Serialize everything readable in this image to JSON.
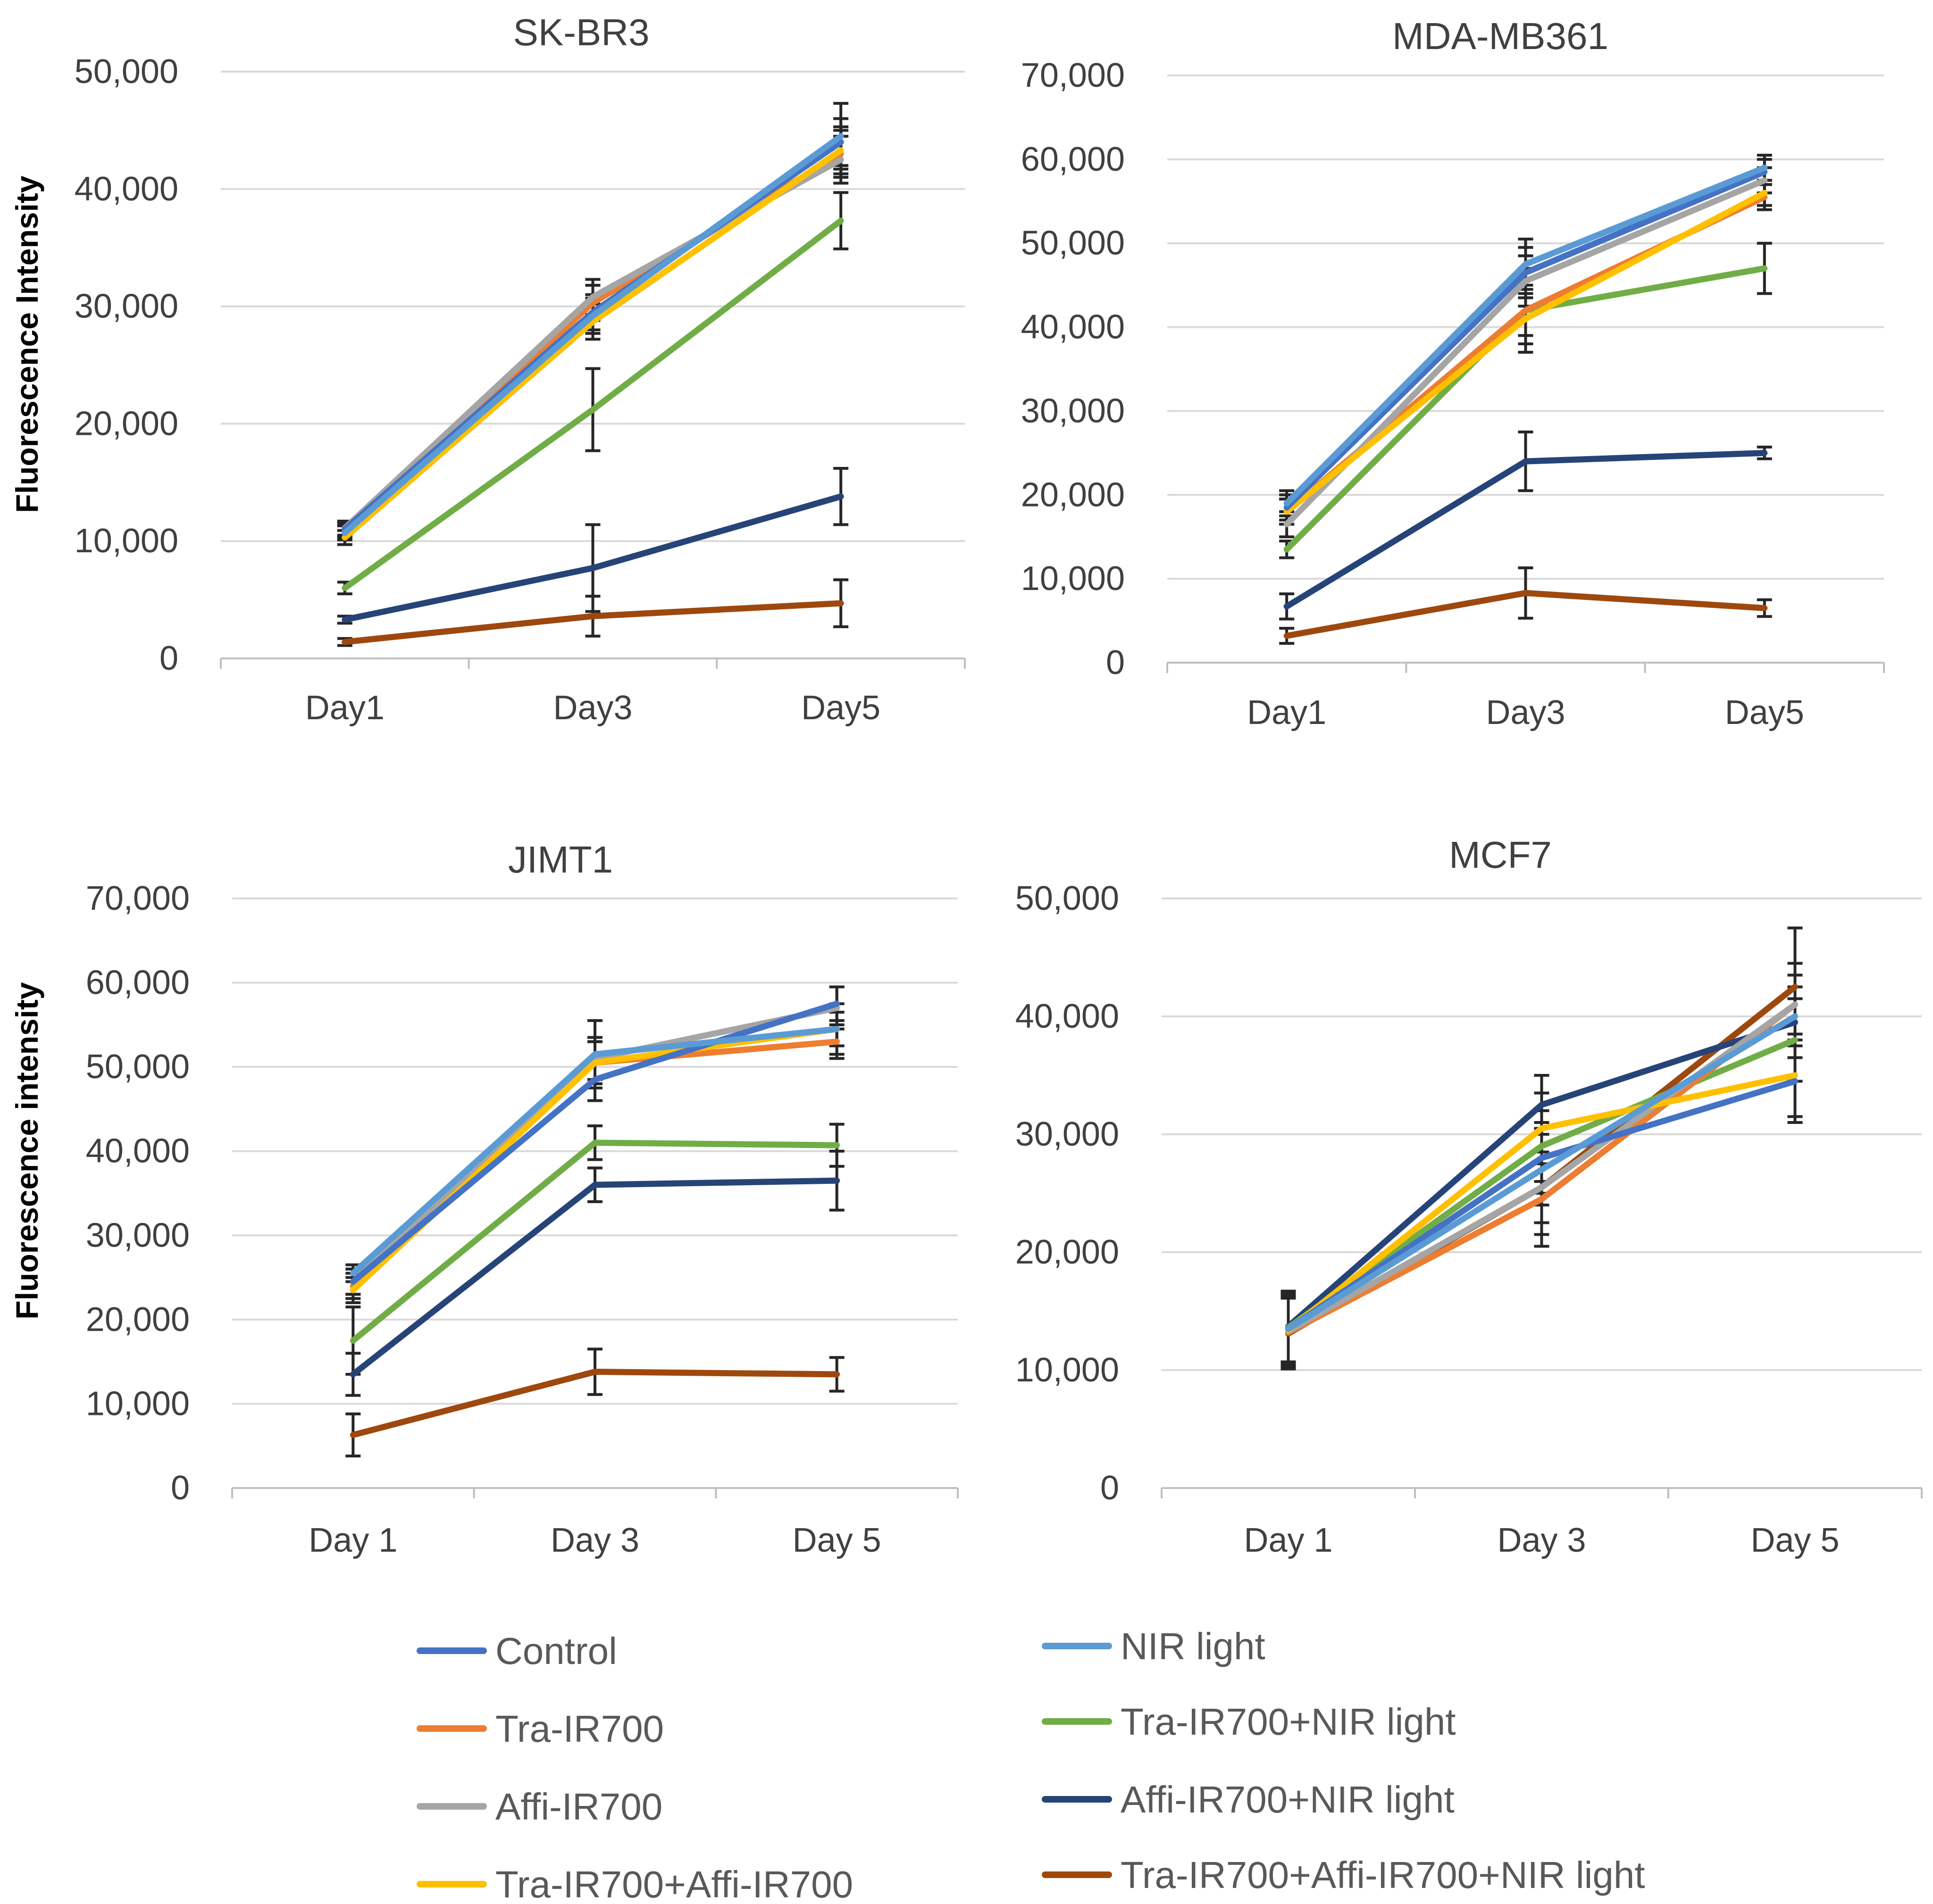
{
  "colors": {
    "control": "#4472C4",
    "nir_light": "#5B9BD5",
    "tra_ir700": "#ED7D31",
    "tra_ir700_nir": "#70AD47",
    "affi_ir700": "#A5A5A5",
    "affi_ir700_nir": "#264478",
    "tra_affi": "#FFC000",
    "tra_affi_nir": "#9E480E"
  },
  "legend": {
    "items": [
      {
        "key": "control",
        "label": "Control"
      },
      {
        "key": "tra_ir700",
        "label": "Tra-IR700"
      },
      {
        "key": "affi_ir700",
        "label": "Affi-IR700"
      },
      {
        "key": "tra_affi",
        "label": "Tra-IR700+Affi-IR700"
      },
      {
        "key": "nir_light",
        "label": "NIR light"
      },
      {
        "key": "tra_ir700_nir",
        "label": "Tra-IR700+NIR light"
      },
      {
        "key": "affi_ir700_nir",
        "label": "Affi-IR700+NIR light"
      },
      {
        "key": "tra_affi_nir",
        "label": "Tra-IR700+Affi-IR700+NIR light"
      }
    ]
  },
  "chart_data": [
    {
      "type": "line",
      "title": "SK-BR3",
      "ylabel": "Fluorescence Intensity",
      "xlabel": "",
      "categories": [
        "Day1",
        "Day3",
        "Day5"
      ],
      "ylim": [
        0,
        50000
      ],
      "yticks": [
        0,
        10000,
        20000,
        30000,
        40000,
        50000
      ],
      "ytick_labels": [
        "0",
        "10,000",
        "20,000",
        "30,000",
        "40,000",
        "50,000"
      ],
      "series": [
        {
          "name": "Control",
          "key": "control",
          "values": [
            11000,
            29500,
            44000
          ],
          "errors": [
            600,
            1500,
            2000
          ]
        },
        {
          "name": "Tra-IR700",
          "key": "tra_ir700",
          "values": [
            10800,
            30300,
            43000
          ],
          "errors": [
            600,
            1500,
            2000
          ]
        },
        {
          "name": "Affi-IR700",
          "key": "affi_ir700",
          "values": [
            11100,
            30800,
            42500
          ],
          "errors": [
            600,
            1500,
            2000
          ]
        },
        {
          "name": "Tra-IR700+Affi-IR700",
          "key": "tra_affi",
          "values": [
            10300,
            28700,
            43300
          ],
          "errors": [
            600,
            1500,
            2000
          ]
        },
        {
          "name": "NIR light",
          "key": "nir_light",
          "values": [
            10700,
            29200,
            44500
          ],
          "errors": [
            600,
            1500,
            2800
          ]
        },
        {
          "name": "Tra-IR700+NIR light",
          "key": "tra_ir700_nir",
          "values": [
            6000,
            21200,
            37300
          ],
          "errors": [
            500,
            3500,
            2400
          ]
        },
        {
          "name": "Affi-IR700+NIR light",
          "key": "affi_ir700_nir",
          "values": [
            3300,
            7700,
            13800
          ],
          "errors": [
            300,
            3700,
            2400
          ]
        },
        {
          "name": "Tra-IR700+Affi-IR700+NIR light",
          "key": "tra_affi_nir",
          "values": [
            1400,
            3600,
            4700
          ],
          "errors": [
            300,
            1700,
            2000
          ]
        }
      ]
    },
    {
      "type": "line",
      "title": "MDA-MB361",
      "ylabel": "",
      "xlabel": "",
      "categories": [
        "Day1",
        "Day3",
        "Day5"
      ],
      "ylim": [
        0,
        70000
      ],
      "yticks": [
        0,
        10000,
        20000,
        30000,
        40000,
        50000,
        60000,
        70000
      ],
      "ytick_labels": [
        "0",
        "10,000",
        "20,000",
        "30,000",
        "40,000",
        "50,000",
        "60,000",
        "70,000"
      ],
      "series": [
        {
          "name": "Control",
          "key": "control",
          "values": [
            18500,
            46500,
            58500
          ],
          "errors": [
            1500,
            3000,
            1500
          ]
        },
        {
          "name": "Tra-IR700",
          "key": "tra_ir700",
          "values": [
            18000,
            42000,
            55500
          ],
          "errors": [
            1500,
            3000,
            1500
          ]
        },
        {
          "name": "Affi-IR700",
          "key": "affi_ir700",
          "values": [
            16500,
            45500,
            57500
          ],
          "errors": [
            1500,
            3000,
            1500
          ]
        },
        {
          "name": "Tra-IR700+Affi-IR700",
          "key": "tra_affi",
          "values": [
            18000,
            41000,
            56000
          ],
          "errors": [
            1500,
            3000,
            1500
          ]
        },
        {
          "name": "NIR light",
          "key": "nir_light",
          "values": [
            19000,
            47500,
            59000
          ],
          "errors": [
            1500,
            3000,
            1500
          ]
        },
        {
          "name": "Tra-IR700+NIR light",
          "key": "tra_ir700_nir",
          "values": [
            13500,
            42000,
            47000
          ],
          "errors": [
            1000,
            5000,
            3000
          ]
        },
        {
          "name": "Affi-IR700+NIR light",
          "key": "affi_ir700_nir",
          "values": [
            6700,
            24000,
            25000
          ],
          "errors": [
            1500,
            3500,
            700
          ]
        },
        {
          "name": "Tra-IR700+Affi-IR700+NIR light",
          "key": "tra_affi_nir",
          "values": [
            3200,
            8300,
            6500
          ],
          "errors": [
            900,
            3000,
            1000
          ]
        }
      ]
    },
    {
      "type": "line",
      "title": "JIMT1",
      "ylabel": "Fluorescence intensity",
      "xlabel": "",
      "categories": [
        "Day 1",
        "Day 3",
        "Day 5"
      ],
      "ylim": [
        0,
        70000
      ],
      "yticks": [
        0,
        10000,
        20000,
        30000,
        40000,
        50000,
        60000,
        70000
      ],
      "ytick_labels": [
        "0",
        "10,000",
        "20,000",
        "30,000",
        "40,000",
        "50,000",
        "60,000",
        "70,000"
      ],
      "series": [
        {
          "name": "Control",
          "key": "control",
          "values": [
            24500,
            48500,
            57500
          ],
          "errors": [
            1500,
            2500,
            2000
          ]
        },
        {
          "name": "Tra-IR700",
          "key": "tra_ir700",
          "values": [
            24000,
            50500,
            53000
          ],
          "errors": [
            1500,
            2500,
            2000
          ]
        },
        {
          "name": "Affi-IR700",
          "key": "affi_ir700",
          "values": [
            24500,
            51000,
            57000
          ],
          "errors": [
            1500,
            2500,
            2500
          ]
        },
        {
          "name": "Tra-IR700+Affi-IR700",
          "key": "tra_affi",
          "values": [
            23500,
            50500,
            54500
          ],
          "errors": [
            1500,
            2500,
            2000
          ]
        },
        {
          "name": "NIR light",
          "key": "nir_light",
          "values": [
            25500,
            51500,
            54500
          ],
          "errors": [
            1000,
            4000,
            3000
          ]
        },
        {
          "name": "Tra-IR700+NIR light",
          "key": "tra_ir700_nir",
          "values": [
            17500,
            41000,
            40700
          ],
          "errors": [
            4000,
            2000,
            2500
          ]
        },
        {
          "name": "Affi-IR700+NIR light",
          "key": "affi_ir700_nir",
          "values": [
            13500,
            36000,
            36500
          ],
          "errors": [
            2500,
            2000,
            3500
          ]
        },
        {
          "name": "Tra-IR700+Affi-IR700+NIR light",
          "key": "tra_affi_nir",
          "values": [
            6300,
            13800,
            13500
          ],
          "errors": [
            2500,
            2700,
            2000
          ]
        }
      ]
    },
    {
      "type": "line",
      "title": "MCF7",
      "ylabel": "",
      "xlabel": "",
      "categories": [
        "Day 1",
        "Day 3",
        "Day 5"
      ],
      "ylim": [
        0,
        50000
      ],
      "yticks": [
        0,
        10000,
        20000,
        30000,
        40000,
        50000
      ],
      "ytick_labels": [
        "0",
        "10,000",
        "20,000",
        "30,000",
        "40,000",
        "50,000"
      ],
      "series": [
        {
          "name": "Control",
          "key": "control",
          "values": [
            13500,
            28000,
            34500
          ],
          "errors": [
            3000,
            3000,
            3500
          ]
        },
        {
          "name": "Tra-IR700",
          "key": "tra_ir700",
          "values": [
            13200,
            24500,
            41000
          ],
          "errors": [
            3000,
            3000,
            3500
          ]
        },
        {
          "name": "Affi-IR700",
          "key": "affi_ir700",
          "values": [
            13300,
            25500,
            41000
          ],
          "errors": [
            3000,
            3000,
            3500
          ]
        },
        {
          "name": "Tra-IR700+Affi-IR700",
          "key": "tra_affi",
          "values": [
            13400,
            30500,
            35000
          ],
          "errors": [
            3000,
            3000,
            3500
          ]
        },
        {
          "name": "NIR light",
          "key": "nir_light",
          "values": [
            13500,
            27000,
            40000
          ],
          "errors": [
            3000,
            3000,
            3500
          ]
        },
        {
          "name": "Tra-IR700+NIR light",
          "key": "tra_ir700_nir",
          "values": [
            13600,
            29000,
            38000
          ],
          "errors": [
            3000,
            3000,
            3500
          ]
        },
        {
          "name": "Affi-IR700+NIR light",
          "key": "affi_ir700_nir",
          "values": [
            13700,
            32500,
            39500
          ],
          "errors": [
            3000,
            2500,
            3000
          ]
        },
        {
          "name": "Tra-IR700+Affi-IR700+NIR light",
          "key": "tra_affi_nir",
          "values": [
            13100,
            25500,
            42500
          ],
          "errors": [
            3000,
            5000,
            5000
          ]
        }
      ]
    }
  ]
}
